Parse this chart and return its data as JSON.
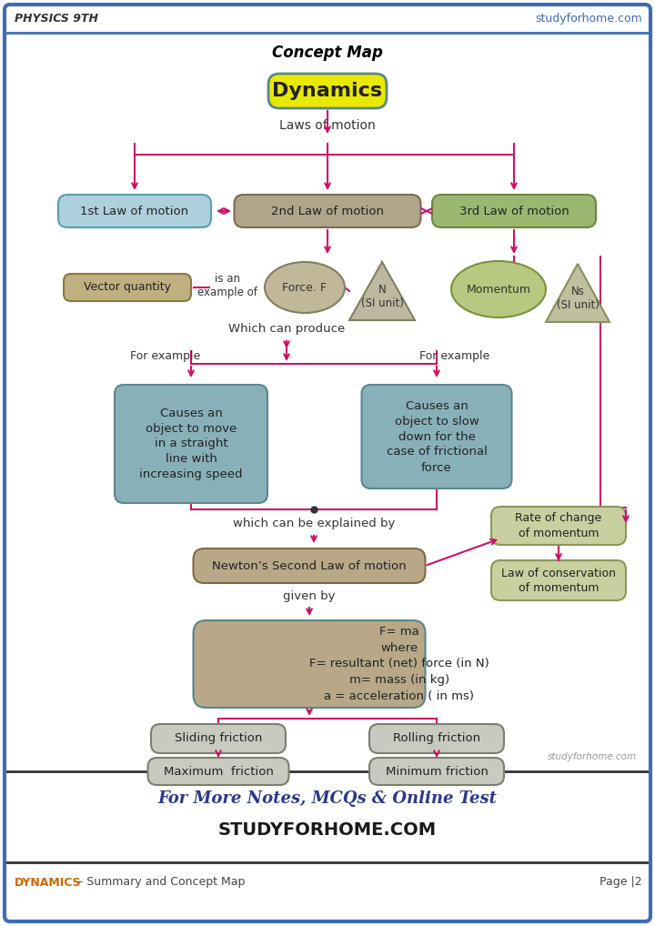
{
  "header_left": "PHYSICS 9TH",
  "header_right": "studyforhome.com",
  "footer_left_orange": "DYNAMICS",
  "footer_left_rest": " – Summary and Concept Map",
  "footer_right": "Page |2",
  "footer_center1": "For More Notes, MCQs & Online Test",
  "footer_center2": "STUDYFORHOME.COM",
  "title": "Concept Map",
  "main_topic": "Dynamics",
  "bg_color": "#ffffff",
  "border_color": "#3d6eb5",
  "ac": "#cc1166",
  "lc": "#cc1166",
  "header_line_color": "#3d6eb5",
  "footer_line_color": "#333333",
  "box1_face": "#aed0dc",
  "box1_edge": "#5a9db0",
  "box2_face": "#b0a48a",
  "box2_edge": "#7a6e50",
  "box3_face": "#9ab870",
  "box3_edge": "#6a8840",
  "ellipse_face": "#c0b898",
  "ellipse_edge": "#808060",
  "tri_face": "#bfb8a0",
  "tri_edge": "#808060",
  "mom_face": "#b8c880",
  "mom_edge": "#7a9040",
  "mom_tri_face": "#bfc0a0",
  "mom_tri_edge": "#8a9060",
  "ex_box_face": "#88b0b8",
  "ex_box_edge": "#5a8890",
  "newt_face": "#b8a888",
  "newt_edge": "#806848",
  "rate_face": "#c8d0a0",
  "rate_edge": "#8a9858",
  "form_face": "#b8a888",
  "form_edge": "#5a8888",
  "fric_face": "#c8cac0",
  "fric_edge": "#7a8070",
  "vec_face": "#c0b080",
  "vec_edge": "#8a7840",
  "dyn_face": "#e8e800",
  "dyn_edge": "#5a8888"
}
